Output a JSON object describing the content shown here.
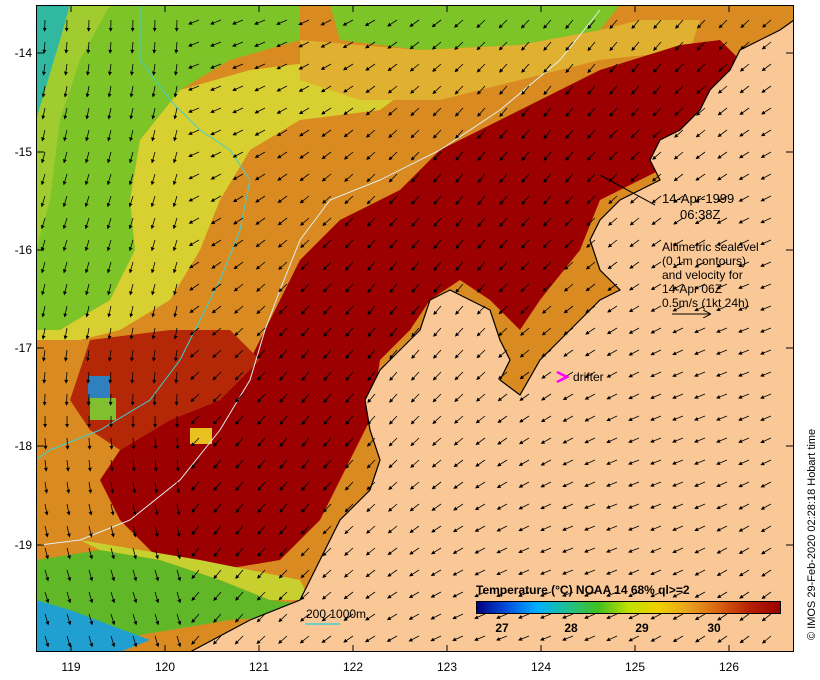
{
  "map": {
    "y_ticks": [
      "-14",
      "-15",
      "-16",
      "-17",
      "-18",
      "-19"
    ],
    "x_ticks": [
      "119",
      "120",
      "121",
      "122",
      "123",
      "124",
      "125",
      "126"
    ]
  },
  "annotations": {
    "date": "14-Apr-1999",
    "time": "06:38Z",
    "sealevel_lines": [
      "Altimetric sealevel",
      "(0.1m contours)",
      "and velocity for",
      "14-Apr 06Z",
      "0.5m/s (1kt 24h)"
    ],
    "drifter_label": "drifter",
    "bathymetry_label": "200  1000m"
  },
  "colorbar": {
    "title": "Temperature (°C) NOAA 14 68% ql>=2",
    "ticks": [
      "27",
      "28",
      "29",
      "30"
    ],
    "colors": [
      "#000080",
      "#0050e0",
      "#00b0ff",
      "#20c090",
      "#40c020",
      "#c0e000",
      "#f0d000",
      "#e8a020",
      "#d86010",
      "#b82000",
      "#9a0000"
    ]
  },
  "credit": "© IMOS 29-Feb-2020 02:28:18 Hobart time",
  "colors": {
    "land": "#fac896",
    "sst_hot": "#9c0000",
    "sst_warm": "#d07018",
    "sst_mid": "#e0b030",
    "sst_cool": "#88cc20",
    "drifter": "#ff00ff"
  }
}
